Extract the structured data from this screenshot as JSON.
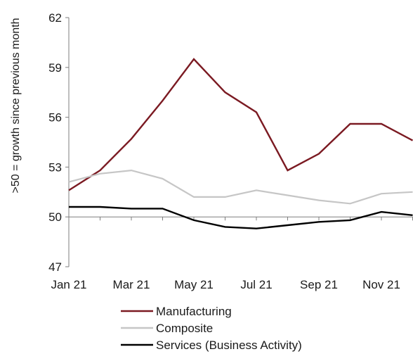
{
  "chart_data": {
    "type": "line",
    "title": "",
    "xlabel": "",
    "ylabel": ">50 = growth since previous month",
    "x": [
      "Jan 21",
      "Feb 21",
      "Mar 21",
      "Apr 21",
      "May 21",
      "Jun 21",
      "Jul 21",
      "Aug 21",
      "Sep 21",
      "Oct 21",
      "Nov 21",
      "Dec 21"
    ],
    "x_tick_labels": [
      "Jan 21",
      "Mar 21",
      "May 21",
      "Jul 21",
      "Sep 21",
      "Nov 21"
    ],
    "y_ticks": [
      47,
      50,
      53,
      56,
      59,
      62
    ],
    "ylim": [
      47,
      62
    ],
    "reference_line": 50,
    "grid": false,
    "legend_position": "bottom",
    "series": [
      {
        "name": "Manufacturing",
        "color": "#7b1a22",
        "values": [
          51.6,
          52.8,
          54.7,
          57.0,
          59.5,
          57.5,
          56.3,
          52.8,
          53.8,
          55.6,
          55.6,
          54.6
        ]
      },
      {
        "name": "Composite",
        "color": "#c6c6c6",
        "values": [
          52.1,
          52.6,
          52.8,
          52.3,
          51.2,
          51.2,
          51.6,
          51.3,
          51.0,
          50.8,
          51.4,
          51.5
        ]
      },
      {
        "name": "Services (Business Activity)",
        "color": "#000000",
        "values": [
          50.6,
          50.6,
          50.5,
          50.5,
          49.8,
          49.4,
          49.3,
          49.5,
          49.7,
          49.8,
          50.3,
          50.1
        ]
      }
    ]
  }
}
